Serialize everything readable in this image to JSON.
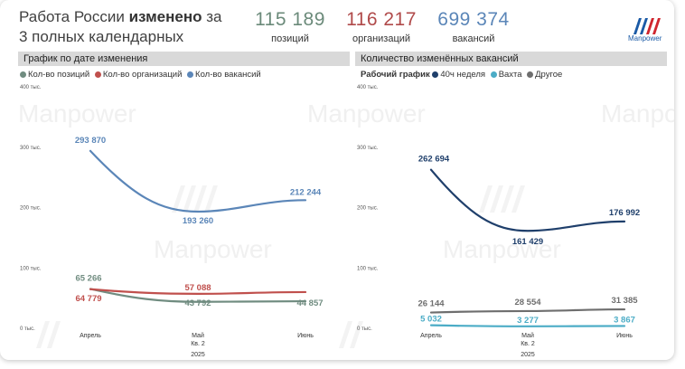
{
  "header": {
    "title_part1": "Работа России ",
    "title_bold": "изменено",
    "title_part2": " за",
    "title_line2": "3 полных календарных месяца",
    "kpis": [
      {
        "value": "115 189",
        "label": "позиций",
        "color": "#6b8a7a"
      },
      {
        "value": "116 217",
        "label": "организаций",
        "color": "#b04a4a"
      },
      {
        "value": "699 374",
        "label": "вакансий",
        "color": "#5b86b8"
      }
    ],
    "logo_text": "Manpower"
  },
  "watermark": "Manpower",
  "colors": {
    "positions": "#708c80",
    "organizations": "#c0504d",
    "vacancies": "#5b86b8",
    "fullweek": "#1f3f6b",
    "shift": "#4bacc6",
    "other": "#6e6e6e"
  },
  "left_panel": {
    "header": "График по дате изменения",
    "legend": [
      {
        "label": "Кол-во позиций",
        "color": "#708c80"
      },
      {
        "label": "Кол-во организаций",
        "color": "#c0504d"
      },
      {
        "label": "Кол-во вакансий",
        "color": "#5b86b8"
      }
    ]
  },
  "right_panel": {
    "header": "Количество изменённых вакансий",
    "legend_title": "Рабочий график",
    "legend": [
      {
        "label": "40ч неделя",
        "color": "#1f3f6b"
      },
      {
        "label": "Вахта",
        "color": "#4bacc6"
      },
      {
        "label": "Другое",
        "color": "#6e6e6e"
      }
    ]
  },
  "chart_data": [
    {
      "type": "line",
      "title": "График по дате изменения",
      "categories": [
        "Апрель",
        "Май",
        "Июнь"
      ],
      "x_sub": [
        "Кв. 2",
        "2025"
      ],
      "ylim": [
        0,
        400000
      ],
      "y_ticks": [
        "0 тыс.",
        "100 тыс.",
        "200 тыс.",
        "300 тыс.",
        "400 тыс."
      ],
      "series": [
        {
          "name": "Кол-во вакансий",
          "values": [
            293870,
            193260,
            212244
          ],
          "labels": [
            "293 870",
            "193 260",
            "212 244"
          ]
        },
        {
          "name": "Кол-во позиций",
          "values": [
            65266,
            43792,
            44857
          ],
          "labels": [
            "65 266",
            "43 792",
            "44 857"
          ]
        },
        {
          "name": "Кол-во организаций",
          "values": [
            64779,
            57088,
            60000
          ],
          "labels": [
            "64 779",
            "57 088",
            ""
          ]
        }
      ]
    },
    {
      "type": "line",
      "title": "Количество изменённых вакансий",
      "categories": [
        "Апрель",
        "Май",
        "Июнь"
      ],
      "x_sub": [
        "Кв. 2",
        "2025"
      ],
      "ylim": [
        0,
        400000
      ],
      "y_ticks": [
        "0 тыс.",
        "100 тыс.",
        "200 тыс.",
        "300 тыс.",
        "400 тыс."
      ],
      "series": [
        {
          "name": "40ч неделя",
          "values": [
            262694,
            161429,
            176992
          ],
          "labels": [
            "262 694",
            "161 429",
            "176 992"
          ]
        },
        {
          "name": "Другое",
          "values": [
            26144,
            28554,
            31385
          ],
          "labels": [
            "26 144",
            "28 554",
            "31 385"
          ]
        },
        {
          "name": "Вахта",
          "values": [
            5032,
            3277,
            3867
          ],
          "labels": [
            "5 032",
            "3 277",
            "3 867"
          ]
        }
      ]
    }
  ]
}
